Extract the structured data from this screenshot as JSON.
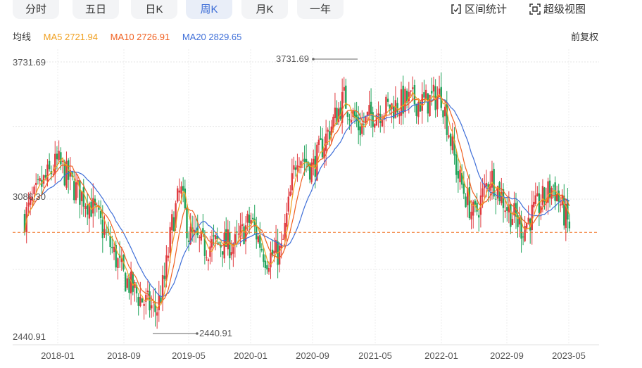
{
  "tabs": [
    "分时",
    "五日",
    "日K",
    "周K",
    "月K",
    "一年"
  ],
  "active_tab": "周K",
  "tools": {
    "range_stats": "区间统计",
    "super_view": "超级视图"
  },
  "ma": {
    "label": "均线",
    "ma5": "MA5 2721.94",
    "ma10": "MA10 2726.91",
    "ma20": "MA20 2829.65"
  },
  "adjust_label": "前复权",
  "colors": {
    "up": "#e0393e",
    "down": "#1fa35a",
    "ma5": "#f0a020",
    "ma10": "#f06020",
    "ma20": "#3f6fd8",
    "active_tab": "#3b6bd6",
    "ref_line": "#f07020"
  },
  "chart_data": {
    "type": "candlestick",
    "y_max_label": "3731.69",
    "y_mid_label": "3086.30",
    "y_min_label": "2440.91",
    "ylim": [
      2440.91,
      3731.69
    ],
    "x_ticks": [
      "2018-01",
      "2018-09",
      "2019-05",
      "2020-01",
      "2020-09",
      "2021-05",
      "2022-01",
      "2022-09",
      "2023-05"
    ],
    "max_annotation": "3731.69",
    "min_annotation": "2440.91",
    "current_price_line": 2930,
    "anchors": [
      [
        "2017-09",
        3000
      ],
      [
        "2017-11",
        3150
      ],
      [
        "2018-01",
        3260
      ],
      [
        "2018-03",
        3140
      ],
      [
        "2018-05",
        3060
      ],
      [
        "2018-07",
        2900
      ],
      [
        "2018-09",
        2720
      ],
      [
        "2018-11",
        2620
      ],
      [
        "2019-01",
        2560
      ],
      [
        "2019-02",
        2700
      ],
      [
        "2019-03",
        2980
      ],
      [
        "2019-04",
        3130
      ],
      [
        "2019-05",
        2920
      ],
      [
        "2019-07",
        2860
      ],
      [
        "2019-09",
        2880
      ],
      [
        "2019-11",
        2870
      ],
      [
        "2020-01",
        2990
      ],
      [
        "2020-03",
        2810
      ],
      [
        "2020-05",
        2840
      ],
      [
        "2020-07",
        3310
      ],
      [
        "2020-09",
        3230
      ],
      [
        "2020-11",
        3400
      ],
      [
        "2021-01",
        3560
      ],
      [
        "2021-03",
        3420
      ],
      [
        "2021-05",
        3500
      ],
      [
        "2021-07",
        3520
      ],
      [
        "2021-09",
        3550
      ],
      [
        "2021-11",
        3540
      ],
      [
        "2022-01",
        3580
      ],
      [
        "2022-03",
        3200
      ],
      [
        "2022-05",
        3000
      ],
      [
        "2022-07",
        3200
      ],
      [
        "2022-09",
        3050
      ],
      [
        "2022-11",
        2950
      ],
      [
        "2023-01",
        3050
      ],
      [
        "2023-03",
        3150
      ],
      [
        "2023-05",
        2960
      ]
    ]
  }
}
